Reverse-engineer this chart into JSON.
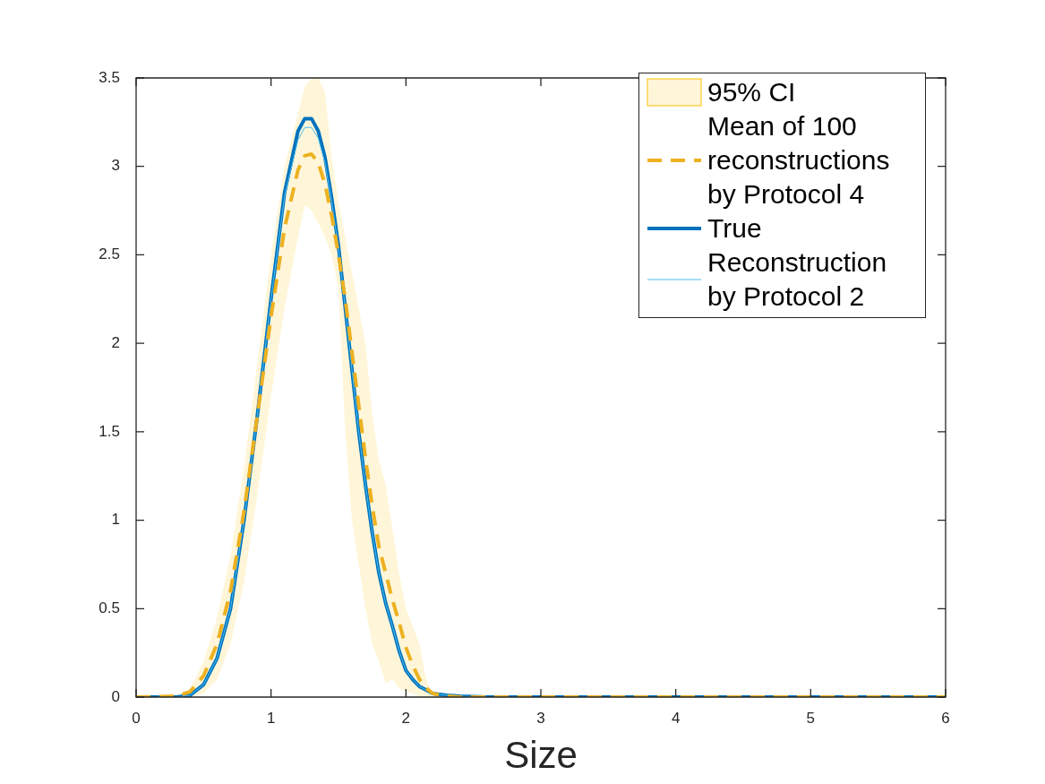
{
  "chart_data": {
    "type": "line",
    "xlabel": "Size",
    "x": [
      0,
      0.3,
      0.4,
      0.5,
      0.6,
      0.7,
      0.8,
      0.9,
      1.0,
      1.1,
      1.2,
      1.25,
      1.3,
      1.35,
      1.4,
      1.45,
      1.5,
      1.55,
      1.6,
      1.65,
      1.7,
      1.75,
      1.8,
      1.85,
      1.9,
      1.95,
      2.0,
      2.05,
      2.1,
      2.15,
      2.2,
      2.3,
      2.4,
      2.6,
      3,
      6
    ],
    "series": [
      {
        "name": "95% CI",
        "type": "area",
        "color": "#ffc000",
        "values": [
          null,
          null,
          null,
          null,
          null,
          null,
          null,
          null,
          null,
          null,
          null,
          null,
          null,
          null,
          null,
          null,
          null,
          null,
          null,
          null,
          null,
          null,
          null,
          null,
          null,
          null,
          null,
          null,
          null,
          null,
          null,
          null,
          null,
          null,
          null,
          null
        ],
        "lower": [
          0,
          0,
          0,
          0.02,
          0.1,
          0.3,
          0.65,
          1.15,
          1.7,
          2.2,
          2.6,
          2.78,
          2.75,
          2.68,
          2.6,
          2.5,
          2.3,
          1.5,
          1.0,
          0.75,
          0.5,
          0.3,
          0.2,
          0.08,
          0.1,
          0.05,
          0.03,
          0.02,
          0,
          0,
          0,
          0,
          0,
          0,
          0,
          0
        ],
        "upper": [
          0,
          0.01,
          0.05,
          0.2,
          0.45,
          0.8,
          1.3,
          1.9,
          2.5,
          3.0,
          3.3,
          3.45,
          3.5,
          3.5,
          3.42,
          3.05,
          2.8,
          2.6,
          2.4,
          2.2,
          2.0,
          1.6,
          1.34,
          1.2,
          0.95,
          0.7,
          0.5,
          0.4,
          0.3,
          0.1,
          0.01,
          0,
          0,
          0,
          0,
          0
        ]
      },
      {
        "name": "Mean of 100 reconstructions by Protocol 4",
        "color": "#edb120",
        "line_style": "dashed",
        "values": [
          0,
          0.005,
          0.03,
          0.12,
          0.3,
          0.6,
          1.05,
          1.6,
          2.15,
          2.65,
          2.98,
          3.06,
          3.07,
          3.02,
          2.9,
          2.72,
          2.5,
          2.25,
          1.95,
          1.65,
          1.35,
          1.08,
          0.85,
          0.7,
          0.55,
          0.42,
          0.28,
          0.18,
          0.1,
          0.05,
          0.02,
          0.005,
          0,
          0,
          0,
          0
        ]
      },
      {
        "name": "True",
        "color": "#0072bd",
        "values": [
          0,
          0,
          0.01,
          0.07,
          0.22,
          0.5,
          1.0,
          1.6,
          2.25,
          2.85,
          3.2,
          3.27,
          3.27,
          3.2,
          3.05,
          2.82,
          2.55,
          2.2,
          1.85,
          1.5,
          1.2,
          0.93,
          0.7,
          0.53,
          0.4,
          0.26,
          0.15,
          0.1,
          0.06,
          0.04,
          0.02,
          0.01,
          0.005,
          0,
          0,
          0
        ]
      },
      {
        "name": "Reconstruction by Protocol 2",
        "color": "#4dbeee",
        "values": [
          null,
          0,
          0.01,
          0.07,
          0.22,
          0.5,
          1.0,
          1.6,
          2.25,
          2.83,
          3.15,
          3.22,
          3.22,
          3.16,
          3.02,
          2.8,
          2.54,
          2.2,
          1.85,
          1.5,
          1.2,
          0.93,
          0.7,
          0.53,
          0.4,
          0.26,
          0.15,
          0.1,
          0.06,
          0.04,
          0.02,
          0.01,
          0.005,
          0,
          null,
          null
        ]
      }
    ],
    "xlim": [
      0,
      6
    ],
    "xticks": [
      0,
      1,
      2,
      3,
      4,
      5,
      6
    ],
    "ylim": [
      0,
      3.5
    ],
    "yticks": [
      0,
      0.5,
      1,
      1.5,
      2,
      2.5,
      3,
      3.5
    ],
    "legend": "top right"
  }
}
